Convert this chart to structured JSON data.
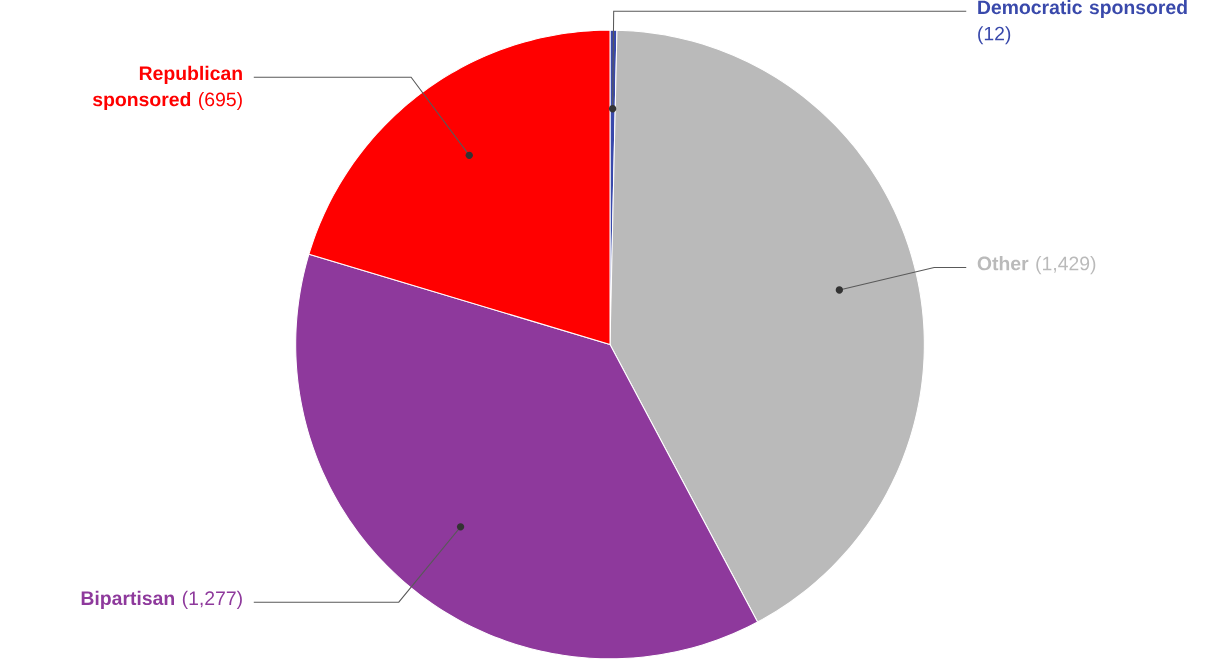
{
  "chart_data": {
    "type": "pie",
    "categories": [
      "Democratic sponsored",
      "Other",
      "Bipartisan",
      "Republican sponsored"
    ],
    "values": [
      12,
      1429,
      1277,
      695
    ],
    "colors": [
      "#3949ab",
      "#bababa",
      "#8e399c",
      "#ff0000"
    ],
    "value_labels": [
      "(12)",
      "(1,429)",
      "(1,277)",
      "(695)"
    ]
  }
}
